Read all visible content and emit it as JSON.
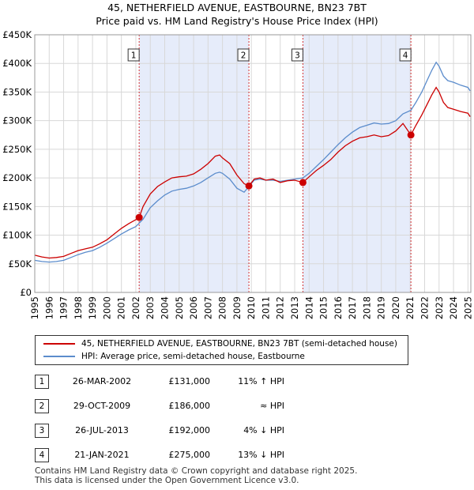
{
  "title_line1": "45, NETHERFIELD AVENUE, EASTBOURNE, BN23 7BT",
  "title_line2": "Price paid vs. HM Land Registry's House Price Index (HPI)",
  "colors": {
    "price": "#cc0000",
    "hpi": "#5b8ccc",
    "shade": "#e6ecfa",
    "marker": "#cc0000"
  },
  "chart_data": {
    "type": "line",
    "title": "45, NETHERFIELD AVENUE, EASTBOURNE, BN23 7BT",
    "subtitle": "Price paid vs. HM Land Registry's House Price Index (HPI)",
    "xlim": [
      1995,
      2025.2
    ],
    "ylim": [
      0,
      450000
    ],
    "y_ticks": [
      0,
      50000,
      100000,
      150000,
      200000,
      250000,
      300000,
      350000,
      400000,
      450000
    ],
    "y_tick_labels": [
      "£0",
      "£50K",
      "£100K",
      "£150K",
      "£200K",
      "£250K",
      "£300K",
      "£350K",
      "£400K",
      "£450K"
    ],
    "x_ticks": [
      1995,
      1996,
      1997,
      1998,
      1999,
      2000,
      2001,
      2002,
      2003,
      2004,
      2005,
      2006,
      2007,
      2008,
      2009,
      2010,
      2011,
      2012,
      2013,
      2014,
      2015,
      2016,
      2017,
      2018,
      2019,
      2020,
      2021,
      2022,
      2023,
      2024,
      2025
    ],
    "x_tick_labels": [
      "1995",
      "1996",
      "1997",
      "1998",
      "1999",
      "2000",
      "2001",
      "2002",
      "2003",
      "2004",
      "2005",
      "2006",
      "2007",
      "2008",
      "2009",
      "2010",
      "2011",
      "2012",
      "2013",
      "2014",
      "2015",
      "2016",
      "2017",
      "2018",
      "2019",
      "2020",
      "2021",
      "2022",
      "2023",
      "2024",
      "2025"
    ],
    "grid": true,
    "shaded_periods": [
      [
        2002.23,
        2009.83
      ],
      [
        2013.57,
        2021.05
      ]
    ],
    "series": [
      {
        "name": "45, NETHERFIELD AVENUE, EASTBOURNE, BN23 7BT (semi-detached house)",
        "color": "#cc0000",
        "points": [
          [
            1995.0,
            65000
          ],
          [
            1995.5,
            62000
          ],
          [
            1996.0,
            60000
          ],
          [
            1996.5,
            61000
          ],
          [
            1997.0,
            63000
          ],
          [
            1997.5,
            68000
          ],
          [
            1998.0,
            73000
          ],
          [
            1998.5,
            76000
          ],
          [
            1999.0,
            79000
          ],
          [
            1999.5,
            85000
          ],
          [
            2000.0,
            92000
          ],
          [
            2000.5,
            102000
          ],
          [
            2001.0,
            112000
          ],
          [
            2001.5,
            120000
          ],
          [
            2002.0,
            127000
          ],
          [
            2002.23,
            131000
          ],
          [
            2002.5,
            150000
          ],
          [
            2003.0,
            172000
          ],
          [
            2003.5,
            185000
          ],
          [
            2004.0,
            193000
          ],
          [
            2004.5,
            200000
          ],
          [
            2005.0,
            202000
          ],
          [
            2005.5,
            203000
          ],
          [
            2006.0,
            207000
          ],
          [
            2006.5,
            215000
          ],
          [
            2007.0,
            225000
          ],
          [
            2007.5,
            238000
          ],
          [
            2007.8,
            240000
          ],
          [
            2008.0,
            235000
          ],
          [
            2008.5,
            225000
          ],
          [
            2009.0,
            205000
          ],
          [
            2009.5,
            190000
          ],
          [
            2009.83,
            186000
          ],
          [
            2010.2,
            198000
          ],
          [
            2010.6,
            200000
          ],
          [
            2011.0,
            196000
          ],
          [
            2011.5,
            198000
          ],
          [
            2012.0,
            192000
          ],
          [
            2012.5,
            195000
          ],
          [
            2013.0,
            196000
          ],
          [
            2013.57,
            192000
          ],
          [
            2014.0,
            202000
          ],
          [
            2014.5,
            213000
          ],
          [
            2015.0,
            222000
          ],
          [
            2015.5,
            232000
          ],
          [
            2016.0,
            245000
          ],
          [
            2016.5,
            256000
          ],
          [
            2017.0,
            264000
          ],
          [
            2017.5,
            270000
          ],
          [
            2018.0,
            272000
          ],
          [
            2018.5,
            275000
          ],
          [
            2019.0,
            272000
          ],
          [
            2019.5,
            274000
          ],
          [
            2020.0,
            282000
          ],
          [
            2020.5,
            295000
          ],
          [
            2021.05,
            275000
          ],
          [
            2021.4,
            292000
          ],
          [
            2021.8,
            310000
          ],
          [
            2022.2,
            330000
          ],
          [
            2022.5,
            345000
          ],
          [
            2022.8,
            358000
          ],
          [
            2023.0,
            350000
          ],
          [
            2023.3,
            332000
          ],
          [
            2023.6,
            323000
          ],
          [
            2024.0,
            320000
          ],
          [
            2024.5,
            316000
          ],
          [
            2025.0,
            313000
          ],
          [
            2025.15,
            307000
          ]
        ]
      },
      {
        "name": "HPI: Average price, semi-detached house, Eastbourne",
        "color": "#5b8ccc",
        "points": [
          [
            1995.0,
            56000
          ],
          [
            1995.5,
            54000
          ],
          [
            1996.0,
            53000
          ],
          [
            1996.5,
            54000
          ],
          [
            1997.0,
            56000
          ],
          [
            1997.5,
            61000
          ],
          [
            1998.0,
            66000
          ],
          [
            1998.5,
            70000
          ],
          [
            1999.0,
            73000
          ],
          [
            1999.5,
            79000
          ],
          [
            2000.0,
            86000
          ],
          [
            2000.5,
            94000
          ],
          [
            2001.0,
            102000
          ],
          [
            2001.5,
            109000
          ],
          [
            2002.0,
            115000
          ],
          [
            2002.5,
            128000
          ],
          [
            2003.0,
            148000
          ],
          [
            2003.5,
            160000
          ],
          [
            2004.0,
            170000
          ],
          [
            2004.5,
            177000
          ],
          [
            2005.0,
            180000
          ],
          [
            2005.5,
            182000
          ],
          [
            2006.0,
            186000
          ],
          [
            2006.5,
            192000
          ],
          [
            2007.0,
            200000
          ],
          [
            2007.5,
            208000
          ],
          [
            2007.8,
            210000
          ],
          [
            2008.0,
            208000
          ],
          [
            2008.5,
            198000
          ],
          [
            2009.0,
            182000
          ],
          [
            2009.5,
            175000
          ],
          [
            2009.83,
            185000
          ],
          [
            2010.2,
            196000
          ],
          [
            2010.6,
            198000
          ],
          [
            2011.0,
            196000
          ],
          [
            2011.5,
            196000
          ],
          [
            2012.0,
            194000
          ],
          [
            2012.5,
            196000
          ],
          [
            2013.0,
            198000
          ],
          [
            2013.57,
            200000
          ],
          [
            2014.0,
            208000
          ],
          [
            2014.5,
            220000
          ],
          [
            2015.0,
            232000
          ],
          [
            2015.5,
            245000
          ],
          [
            2016.0,
            258000
          ],
          [
            2016.5,
            270000
          ],
          [
            2017.0,
            280000
          ],
          [
            2017.5,
            288000
          ],
          [
            2018.0,
            292000
          ],
          [
            2018.5,
            296000
          ],
          [
            2019.0,
            294000
          ],
          [
            2019.5,
            295000
          ],
          [
            2020.0,
            300000
          ],
          [
            2020.5,
            312000
          ],
          [
            2021.05,
            318000
          ],
          [
            2021.4,
            332000
          ],
          [
            2021.8,
            350000
          ],
          [
            2022.2,
            372000
          ],
          [
            2022.5,
            388000
          ],
          [
            2022.8,
            402000
          ],
          [
            2023.0,
            395000
          ],
          [
            2023.3,
            378000
          ],
          [
            2023.6,
            370000
          ],
          [
            2024.0,
            367000
          ],
          [
            2024.5,
            362000
          ],
          [
            2025.0,
            358000
          ],
          [
            2025.15,
            352000
          ]
        ]
      }
    ],
    "sales": [
      {
        "marker": "1",
        "x": 2002.23,
        "price": 131000
      },
      {
        "marker": "2",
        "x": 2009.83,
        "price": 186000
      },
      {
        "marker": "3",
        "x": 2013.57,
        "price": 192000
      },
      {
        "marker": "4",
        "x": 2021.05,
        "price": 275000
      }
    ]
  },
  "legend": {
    "price_label": "45, NETHERFIELD AVENUE, EASTBOURNE, BN23 7BT (semi-detached house)",
    "hpi_label": "HPI: Average price, semi-detached house, Eastbourne"
  },
  "sales_table": [
    {
      "num": "1",
      "date": "26-MAR-2002",
      "price": "£131,000",
      "hpi": "11% ↑ HPI"
    },
    {
      "num": "2",
      "date": "29-OCT-2009",
      "price": "£186,000",
      "hpi": "≈ HPI"
    },
    {
      "num": "3",
      "date": "26-JUL-2013",
      "price": "£192,000",
      "hpi": "4% ↓ HPI"
    },
    {
      "num": "4",
      "date": "21-JAN-2021",
      "price": "£275,000",
      "hpi": "13% ↓ HPI"
    }
  ],
  "footer": {
    "line1": "Contains HM Land Registry data © Crown copyright and database right 2025.",
    "line2": "This data is licensed under the Open Government Licence v3.0."
  }
}
